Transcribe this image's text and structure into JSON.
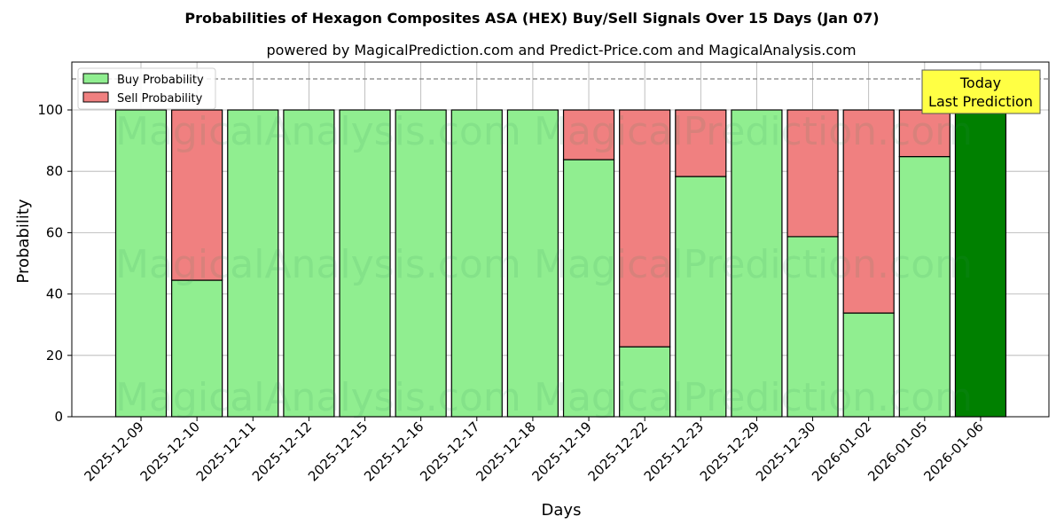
{
  "chart_data": {
    "type": "bar",
    "stacked": true,
    "title": "Probabilities of Hexagon Composites ASA (HEX) Buy/Sell Signals Over 15 Days (Jan 07)",
    "subtitle": "powered by MagicalPrediction.com and Predict-Price.com and MagicalAnalysis.com",
    "xlabel": "Days",
    "ylabel": "Probability",
    "ylim": [
      0,
      115
    ],
    "yticks": [
      0,
      20,
      40,
      60,
      80,
      100
    ],
    "grid": true,
    "legend_position": "upper left",
    "reference_line": {
      "y": 110,
      "style": "dashed"
    },
    "categories": [
      "2025-12-09",
      "2025-12-10",
      "2025-12-11",
      "2025-12-12",
      "2025-12-15",
      "2025-12-16",
      "2025-12-17",
      "2025-12-18",
      "2025-12-19",
      "2025-12-22",
      "2025-12-23",
      "2025-12-29",
      "2025-12-30",
      "2026-01-02",
      "2026-01-05",
      "2026-01-06"
    ],
    "series": [
      {
        "name": "Buy Probability",
        "color": "#90ee90",
        "values": [
          100,
          44.5,
          100,
          100,
          100,
          100,
          100,
          100,
          83.8,
          22.8,
          78.3,
          100,
          58.7,
          33.8,
          84.8,
          100
        ]
      },
      {
        "name": "Sell Probability",
        "color": "#f08080",
        "values": [
          0,
          55.5,
          0,
          0,
          0,
          0,
          0,
          0,
          16.2,
          77.2,
          21.7,
          0,
          41.3,
          66.2,
          15.2,
          0
        ]
      }
    ],
    "highlight": {
      "category": "2026-01-06",
      "color": "#008000",
      "annotation": [
        "Today",
        "Last Prediction"
      ]
    },
    "watermarks": [
      "MagicalAnalysis.com",
      "MagicalPrediction.com"
    ]
  },
  "labels": {
    "title": "Probabilities of Hexagon Composites ASA (HEX) Buy/Sell Signals Over 15 Days (Jan 07)",
    "subtitle": "powered by MagicalPrediction.com and Predict-Price.com and MagicalAnalysis.com",
    "xlabel": "Days",
    "ylabel": "Probability",
    "legend_buy": "Buy Probability",
    "legend_sell": "Sell Probability",
    "today_line1": "Today",
    "today_line2": "Last Prediction",
    "wm1": "MagicalAnalysis.com",
    "wm2": "MagicalPrediction.com"
  }
}
